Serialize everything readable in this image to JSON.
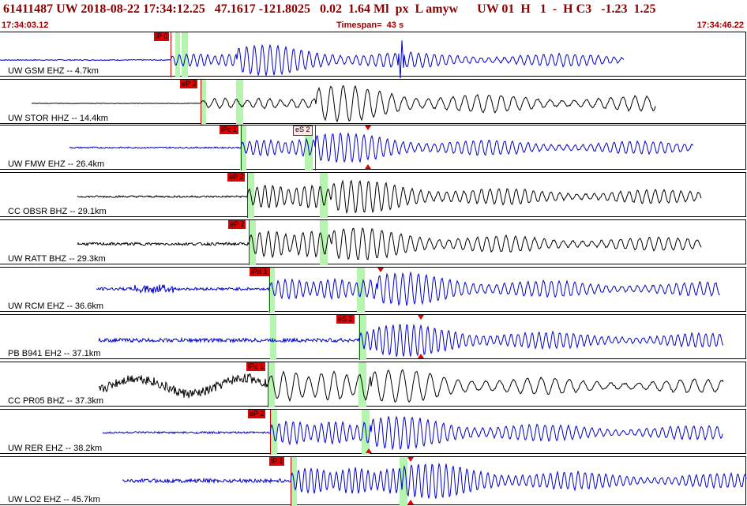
{
  "header": {
    "title": "61411487 UW 2018-08-22 17:34:12.25   47.1617 -121.8025   0.02  1.64 Ml  px  L amyw      UW 01  H   1  -  H C3   -1.23  1.25",
    "start_time": "17:34:03.12",
    "timespan": "Timespan=  43 s",
    "end_time": "17:34:46.22"
  },
  "colors": {
    "blue_trace": "#0000cc",
    "black_trace": "#000000",
    "pick": "#e00000",
    "band": "#b6f5b0"
  },
  "panels": [
    {
      "label": "UW GSM EHZ -- 4.7km",
      "color": "blue",
      "picks": [
        {
          "text": "iP 0",
          "style": "red"
        }
      ],
      "triangles": []
    },
    {
      "label": "UW STOR HHZ -- 14.4km",
      "color": "black",
      "picks": [
        {
          "text": "eP 3",
          "style": "red"
        }
      ],
      "triangles": []
    },
    {
      "label": "UW FMW EHZ -- 26.4km",
      "color": "blue",
      "picks": [
        {
          "text": "iPc 1",
          "style": "red"
        },
        {
          "text": "eS 2",
          "style": "outline"
        }
      ],
      "triangles": [
        "down",
        "up"
      ]
    },
    {
      "label": "CC OBSR BHZ -- 29.1km",
      "color": "black",
      "picks": [
        {
          "text": "eP 3",
          "style": "red"
        }
      ],
      "triangles": []
    },
    {
      "label": "UW RATT BHZ -- 29.3km",
      "color": "black",
      "picks": [
        {
          "text": "eP 2",
          "style": "red"
        }
      ],
      "triangles": []
    },
    {
      "label": "UW RCM EHZ -- 36.6km",
      "color": "blue",
      "picks": [
        {
          "text": "iPd 1",
          "style": "red"
        }
      ],
      "triangles": [
        "down"
      ]
    },
    {
      "label": "PB B941 EH2 -- 37.1km",
      "color": "blue",
      "picks": [
        {
          "text": "eS 2",
          "style": "red"
        }
      ],
      "triangles": [
        "down",
        "up"
      ]
    },
    {
      "label": "CC PR05 BHZ -- 37.3km",
      "color": "black",
      "picks": [
        {
          "text": "iPc 1",
          "style": "red"
        }
      ],
      "triangles": []
    },
    {
      "label": "UW RER EHZ -- 38.2km",
      "color": "blue",
      "picks": [
        {
          "text": "eP 2",
          "style": "red"
        }
      ],
      "triangles": [
        "up"
      ]
    },
    {
      "label": "UW LO2 EHZ -- 45.7km",
      "color": "blue",
      "picks": [
        {
          "text": "iP 1",
          "style": "red"
        }
      ],
      "triangles": [
        "down",
        "up"
      ]
    }
  ]
}
